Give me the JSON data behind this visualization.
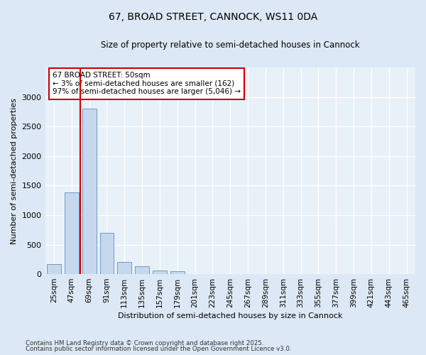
{
  "title1": "67, BROAD STREET, CANNOCK, WS11 0DA",
  "title2": "Size of property relative to semi-detached houses in Cannock",
  "xlabel": "Distribution of semi-detached houses by size in Cannock",
  "ylabel": "Number of semi-detached properties",
  "categories": [
    "25sqm",
    "47sqm",
    "69sqm",
    "91sqm",
    "113sqm",
    "135sqm",
    "157sqm",
    "179sqm",
    "201sqm",
    "223sqm",
    "245sqm",
    "267sqm",
    "289sqm",
    "311sqm",
    "333sqm",
    "355sqm",
    "377sqm",
    "399sqm",
    "421sqm",
    "443sqm",
    "465sqm"
  ],
  "values": [
    165,
    1390,
    2800,
    700,
    200,
    130,
    65,
    50,
    0,
    0,
    0,
    0,
    0,
    0,
    0,
    0,
    0,
    0,
    0,
    0,
    0
  ],
  "bar_color": "#c5d8ee",
  "bar_edge_color": "#7399c6",
  "highlight_line_color": "#cc0000",
  "annotation_text": "67 BROAD STREET: 50sqm\n← 3% of semi-detached houses are smaller (162)\n97% of semi-detached houses are larger (5,046) →",
  "annotation_box_color": "#cc0000",
  "ylim": [
    0,
    3500
  ],
  "yticks": [
    0,
    500,
    1000,
    1500,
    2000,
    2500,
    3000
  ],
  "footer1": "Contains HM Land Registry data © Crown copyright and database right 2025.",
  "footer2": "Contains public sector information licensed under the Open Government Licence v3.0.",
  "bg_color": "#dce8f5",
  "plot_bg_color": "#e8f0f8",
  "grid_color": "#ffffff"
}
